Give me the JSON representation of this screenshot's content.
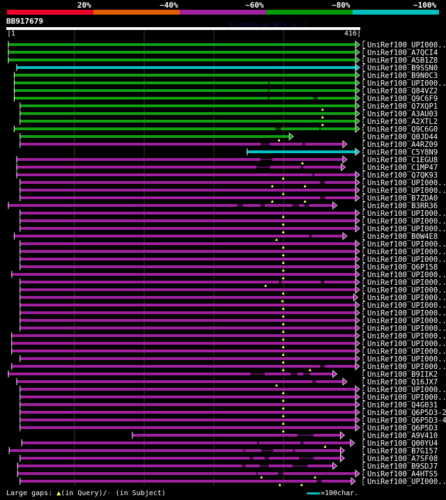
{
  "header": {
    "percent_labels": [
      "20%",
      "~40%",
      "~60%",
      "~80%",
      "~100%"
    ],
    "percent_colors": [
      "#f0002a",
      "#e06000",
      "#a020a0",
      "#009a00",
      "#00c0c0"
    ],
    "query_id": "BB917679",
    "version": "AlignView.pm Beta rel.7",
    "query_start": "1",
    "query_end": "416"
  },
  "query_length": 416,
  "colors": {
    "green": "#10a010",
    "cyan": "#00c0c8",
    "magenta": "#a020a0",
    "gap_marker": "#ffff66",
    "grid": "#3a3a10"
  },
  "hits": [
    {
      "label": "UniRef100_UPI000..",
      "color": "green",
      "start": 1,
      "end": 416,
      "gaps": [],
      "qgaps": []
    },
    {
      "label": "UniRef100_A7QCI4",
      "color": "green",
      "start": 1,
      "end": 416,
      "gaps": [],
      "qgaps": []
    },
    {
      "label": "UniRef100_A5B1Z8",
      "color": "green",
      "start": 1,
      "end": 416,
      "gaps": [],
      "qgaps": []
    },
    {
      "label": "UniRef100_B9SSN0",
      "color": "cyan",
      "start": 11,
      "end": 416,
      "gaps": [],
      "qgaps": []
    },
    {
      "label": "UniRef100_B9N0C3",
      "color": "green",
      "start": 8,
      "end": 416,
      "gaps": [],
      "qgaps": []
    },
    {
      "label": "UniRef100_UPI000..",
      "color": "green",
      "start": 8,
      "end": 416,
      "gaps": [
        [
          311,
          312
        ]
      ],
      "qgaps": []
    },
    {
      "label": "UniRef100_Q84VZ2",
      "color": "green",
      "start": 8,
      "end": 416,
      "gaps": [
        [
          311,
          312
        ]
      ],
      "qgaps": []
    },
    {
      "label": "UniRef100_Q9C6F9",
      "color": "green",
      "start": 8,
      "end": 416,
      "gaps": [
        [
          311,
          312
        ],
        [
          365,
          370
        ]
      ],
      "qgaps": []
    },
    {
      "label": "UniRef100_Q7XQP1",
      "color": "green",
      "start": 15,
      "end": 416,
      "gaps": [],
      "qgaps": [
        376
      ]
    },
    {
      "label": "UniRef100_A3AU03",
      "color": "green",
      "start": 15,
      "end": 416,
      "gaps": [],
      "qgaps": [
        376
      ]
    },
    {
      "label": "UniRef100_A2XTL2",
      "color": "green",
      "start": 15,
      "end": 416,
      "gaps": [],
      "qgaps": [
        376
      ]
    },
    {
      "label": "UniRef100_Q9C6G0",
      "color": "green",
      "start": 8,
      "end": 416,
      "gaps": [
        [
          320,
          326
        ],
        [
          372,
          374
        ]
      ],
      "qgaps": []
    },
    {
      "label": "UniRef100_Q0JD44",
      "color": "green",
      "start": 15,
      "end": 337,
      "gaps": [],
      "qgaps": [
        324
      ]
    },
    {
      "label": "UniRef100_A4RZ09",
      "color": "magenta",
      "start": 15,
      "end": 401,
      "gaps": [
        [
          302,
          313
        ],
        [
          352,
          355
        ]
      ],
      "qgaps": []
    },
    {
      "label": "UniRef100_C5Y8N9",
      "color": "cyan",
      "start": 286,
      "end": 416,
      "gaps": [],
      "qgaps": []
    },
    {
      "label": "UniRef100_C1EGU8",
      "color": "magenta",
      "start": 11,
      "end": 401,
      "gaps": [
        [
          302,
          316
        ]
      ],
      "qgaps": [
        352
      ]
    },
    {
      "label": "UniRef100_C1MP47",
      "color": "magenta",
      "start": 11,
      "end": 399,
      "gaps": [
        [
          297,
          313
        ],
        [
          350,
          353
        ]
      ],
      "qgaps": []
    },
    {
      "label": "UniRef100_Q7QK93",
      "color": "magenta",
      "start": 11,
      "end": 416,
      "gaps": [
        [
          364,
          366
        ]
      ],
      "qgaps": [
        329
      ]
    },
    {
      "label": "UniRef100_UPI000..",
      "color": "magenta",
      "start": 15,
      "end": 416,
      "gaps": [
        [
          373,
          379
        ]
      ],
      "qgaps": [
        316,
        355
      ]
    },
    {
      "label": "UniRef100_UPI000..",
      "color": "magenta",
      "start": 15,
      "end": 416,
      "gaps": [],
      "qgaps": [
        329
      ]
    },
    {
      "label": "UniRef100_B7ZDA0",
      "color": "magenta",
      "start": 15,
      "end": 416,
      "gaps": [
        [
          373,
          379
        ]
      ],
      "qgaps": [
        316,
        355
      ]
    },
    {
      "label": "UniRef100_B3RR36",
      "color": "magenta",
      "start": 1,
      "end": 389,
      "gaps": [
        [
          274,
          281
        ],
        [
          302,
          307
        ],
        [
          340,
          348
        ],
        [
          354,
          360
        ]
      ],
      "qgaps": []
    },
    {
      "label": "UniRef100_UPI000..",
      "color": "magenta",
      "start": 15,
      "end": 416,
      "gaps": [],
      "qgaps": [
        329
      ]
    },
    {
      "label": "UniRef100_UPI000..",
      "color": "magenta",
      "start": 15,
      "end": 416,
      "gaps": [],
      "qgaps": [
        329
      ]
    },
    {
      "label": "UniRef100_UPI000..",
      "color": "magenta",
      "start": 15,
      "end": 416,
      "gaps": [],
      "qgaps": [
        329
      ]
    },
    {
      "label": "UniRef100_B0W4E8",
      "color": "magenta",
      "start": 8,
      "end": 401,
      "gaps": [
        [
          360,
          363
        ]
      ],
      "qgaps": [
        321
      ]
    },
    {
      "label": "UniRef100_UPI000..",
      "color": "magenta",
      "start": 15,
      "end": 416,
      "gaps": [],
      "qgaps": [
        329
      ]
    },
    {
      "label": "UniRef100_UPI000..",
      "color": "magenta",
      "start": 15,
      "end": 416,
      "gaps": [],
      "qgaps": [
        329
      ]
    },
    {
      "label": "UniRef100_UPI000..",
      "color": "magenta",
      "start": 15,
      "end": 416,
      "gaps": [],
      "qgaps": [
        329
      ]
    },
    {
      "label": "UniRef100_Q6P158",
      "color": "magenta",
      "start": 15,
      "end": 416,
      "gaps": [],
      "qgaps": [
        329
      ]
    },
    {
      "label": "UniRef100_UPI000..",
      "color": "magenta",
      "start": 5,
      "end": 416,
      "gaps": [],
      "qgaps": [
        329
      ]
    },
    {
      "label": "UniRef100_UPI000..",
      "color": "magenta",
      "start": 15,
      "end": 416,
      "gaps": [
        [
          324,
          327
        ],
        [
          374,
          378
        ]
      ],
      "qgaps": [
        308
      ]
    },
    {
      "label": "UniRef100_UPI000..",
      "color": "magenta",
      "start": 15,
      "end": 416,
      "gaps": [],
      "qgaps": [
        329
      ]
    },
    {
      "label": "UniRef100_UPI000..",
      "color": "magenta",
      "start": 15,
      "end": 414,
      "gaps": [],
      "qgaps": [
        328
      ]
    },
    {
      "label": "UniRef100_UPI000..",
      "color": "magenta",
      "start": 15,
      "end": 416,
      "gaps": [],
      "qgaps": [
        329
      ]
    },
    {
      "label": "UniRef100_UPI000..",
      "color": "magenta",
      "start": 15,
      "end": 416,
      "gaps": [],
      "qgaps": [
        329
      ]
    },
    {
      "label": "UniRef100_UPI000..",
      "color": "magenta",
      "start": 15,
      "end": 416,
      "gaps": [],
      "qgaps": [
        329
      ]
    },
    {
      "label": "UniRef100_UPI000..",
      "color": "magenta",
      "start": 15,
      "end": 416,
      "gaps": [],
      "qgaps": [
        329
      ]
    },
    {
      "label": "UniRef100_UPI000..",
      "color": "magenta",
      "start": 5,
      "end": 416,
      "gaps": [],
      "qgaps": [
        329
      ]
    },
    {
      "label": "UniRef100_UPI000..",
      "color": "magenta",
      "start": 5,
      "end": 416,
      "gaps": [],
      "qgaps": [
        329
      ]
    },
    {
      "label": "UniRef100_UPI000..",
      "color": "magenta",
      "start": 5,
      "end": 416,
      "gaps": [],
      "qgaps": [
        329
      ]
    },
    {
      "label": "UniRef100_UPI000..",
      "color": "magenta",
      "start": 15,
      "end": 416,
      "gaps": [],
      "qgaps": [
        329
      ]
    },
    {
      "label": "UniRef100_UPI000..",
      "color": "magenta",
      "start": 5,
      "end": 416,
      "gaps": [
        [
          373,
          379
        ]
      ],
      "qgaps": [
        329,
        361
      ]
    },
    {
      "label": "UniRef100_B9IIK2",
      "color": "magenta",
      "start": 1,
      "end": 389,
      "gaps": [
        [
          290,
          307
        ],
        [
          338,
          346
        ],
        [
          353,
          361
        ]
      ],
      "qgaps": []
    },
    {
      "label": "UniRef100_Q16JX7",
      "color": "magenta",
      "start": 11,
      "end": 401,
      "gaps": [
        [
          364,
          368
        ]
      ],
      "qgaps": [
        321
      ]
    },
    {
      "label": "UniRef100_UPI000..",
      "color": "magenta",
      "start": 15,
      "end": 416,
      "gaps": [],
      "qgaps": [
        329
      ]
    },
    {
      "label": "UniRef100_UPI000..",
      "color": "magenta",
      "start": 15,
      "end": 416,
      "gaps": [],
      "qgaps": [
        329
      ]
    },
    {
      "label": "UniRef100_Q4G031",
      "color": "magenta",
      "start": 15,
      "end": 416,
      "gaps": [],
      "qgaps": [
        329
      ]
    },
    {
      "label": "UniRef100_Q6P5D3-2",
      "color": "magenta",
      "start": 15,
      "end": 416,
      "gaps": [],
      "qgaps": [
        329
      ]
    },
    {
      "label": "UniRef100_Q6P5D3-4",
      "color": "magenta",
      "start": 15,
      "end": 416,
      "gaps": [],
      "qgaps": [
        329
      ]
    },
    {
      "label": "UniRef100_Q6P5D3",
      "color": "magenta",
      "start": 15,
      "end": 416,
      "gaps": [],
      "qgaps": [
        329
      ]
    },
    {
      "label": "UniRef100_A9V410",
      "color": "magenta",
      "start": 149,
      "end": 398,
      "gaps": [
        [
          346,
          365
        ]
      ],
      "qgaps": []
    },
    {
      "label": "UniRef100_Q00YU4",
      "color": "magenta",
      "start": 17,
      "end": 410,
      "gaps": [
        [
          298,
          300
        ],
        [
          350,
          353
        ]
      ],
      "qgaps": [
        379
      ]
    },
    {
      "label": "UniRef100_B7G157",
      "color": "magenta",
      "start": 2,
      "end": 398,
      "gaps": [
        [
          282,
          283
        ],
        [
          303,
          317
        ],
        [
          341,
          343
        ]
      ],
      "qgaps": []
    },
    {
      "label": "UniRef100_A7SF08",
      "color": "magenta",
      "start": 15,
      "end": 398,
      "gaps": [
        [
          289,
          293
        ],
        [
          307,
          312
        ],
        [
          348,
          365
        ]
      ],
      "qgaps": []
    },
    {
      "label": "UniRef100_B9SDJ7",
      "color": "magenta",
      "start": 12,
      "end": 389,
      "gaps": [
        [
          280,
          284
        ],
        [
          301,
          312
        ],
        [
          340,
          358
        ]
      ],
      "qgaps": []
    },
    {
      "label": "UniRef100_A4HTS5",
      "color": "magenta",
      "start": 12,
      "end": 416,
      "gaps": [
        [
          297,
          298
        ],
        [
          323,
          329
        ]
      ],
      "qgaps": [
        303,
        367
      ]
    },
    {
      "label": "UniRef100_UPI000..",
      "color": "magenta",
      "start": 15,
      "end": 411,
      "gaps": [
        [
          369,
          375
        ]
      ],
      "qgaps": [
        325,
        351
      ]
    }
  ],
  "legend": {
    "large_gaps": "Large gaps:",
    "query_marker": "▲",
    "in_query": "(in Query)/",
    "subject_marker": "-",
    "in_subject": " (in Subject)",
    "scale_text": "=100char."
  }
}
